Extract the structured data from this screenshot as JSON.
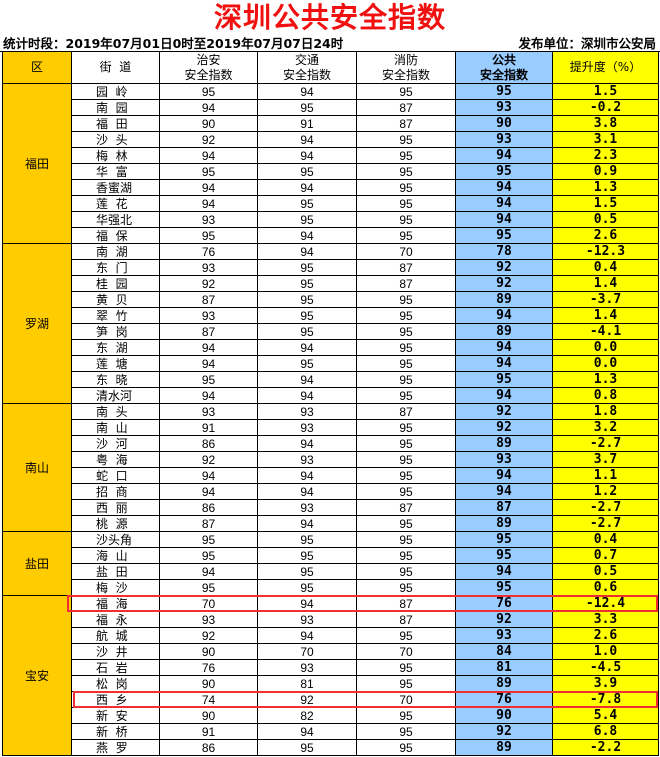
{
  "title": "深圳公共安全指数",
  "period": "统计时段：2019年07月01日0时至2019年07月07日24时",
  "publisher": "发布单位：深圳市公安局",
  "colors": {
    "district_bg": "#ffcc00",
    "public_bg": "#99ccff",
    "improve_bg": "#ffff00",
    "title": "#f01010",
    "highlight": "#f03030"
  },
  "headers": {
    "district": "区",
    "street": "街  道",
    "security": [
      "治安",
      "安全指数"
    ],
    "traffic": [
      "交通",
      "安全指数"
    ],
    "fire": [
      "消防",
      "安全指数"
    ],
    "public": [
      "公共",
      "安全指数"
    ],
    "improve": "提升度（%）"
  },
  "districts": [
    {
      "name": "福田",
      "rows": [
        [
          "园  岭",
          95,
          94,
          95,
          95,
          "1.5"
        ],
        [
          "南  园",
          94,
          95,
          87,
          93,
          "-0.2"
        ],
        [
          "福  田",
          90,
          91,
          87,
          90,
          "3.8"
        ],
        [
          "沙  头",
          92,
          94,
          95,
          93,
          "3.1"
        ],
        [
          "梅  林",
          94,
          94,
          95,
          94,
          "2.3"
        ],
        [
          "华  富",
          95,
          95,
          95,
          95,
          "0.9"
        ],
        [
          "香蜜湖",
          94,
          94,
          95,
          94,
          "1.3"
        ],
        [
          "莲  花",
          94,
          95,
          95,
          94,
          "1.5"
        ],
        [
          "华强北",
          93,
          95,
          95,
          94,
          "0.5"
        ],
        [
          "福  保",
          95,
          94,
          95,
          95,
          "2.6"
        ]
      ]
    },
    {
      "name": "罗湖",
      "rows": [
        [
          "南  湖",
          76,
          94,
          70,
          78,
          "-12.3"
        ],
        [
          "东  门",
          93,
          95,
          87,
          92,
          "0.4"
        ],
        [
          "桂  园",
          92,
          95,
          87,
          92,
          "1.4"
        ],
        [
          "黄  贝",
          87,
          95,
          95,
          89,
          "-3.7"
        ],
        [
          "翠  竹",
          93,
          95,
          95,
          94,
          "1.4"
        ],
        [
          "笋  岗",
          87,
          95,
          95,
          89,
          "-4.1"
        ],
        [
          "东  湖",
          94,
          94,
          95,
          94,
          "0.0"
        ],
        [
          "莲  塘",
          94,
          95,
          95,
          94,
          "0.0"
        ],
        [
          "东  晓",
          95,
          94,
          95,
          95,
          "1.3"
        ],
        [
          "清水河",
          94,
          94,
          95,
          94,
          "0.8"
        ]
      ]
    },
    {
      "name": "南山",
      "rows": [
        [
          "南  头",
          93,
          93,
          87,
          92,
          "1.8"
        ],
        [
          "南  山",
          91,
          93,
          95,
          92,
          "3.2"
        ],
        [
          "沙  河",
          86,
          94,
          95,
          89,
          "-2.7"
        ],
        [
          "粤  海",
          92,
          93,
          95,
          93,
          "3.7"
        ],
        [
          "蛇  口",
          94,
          94,
          95,
          94,
          "1.1"
        ],
        [
          "招  商",
          94,
          94,
          95,
          94,
          "1.2"
        ],
        [
          "西  丽",
          86,
          93,
          87,
          87,
          "-2.7"
        ],
        [
          "桃  源",
          87,
          94,
          95,
          89,
          "-2.7"
        ]
      ]
    },
    {
      "name": "盐田",
      "rows": [
        [
          "沙头角",
          95,
          95,
          95,
          95,
          "0.4"
        ],
        [
          "海  山",
          95,
          95,
          95,
          95,
          "0.7"
        ],
        [
          "盐  田",
          94,
          95,
          95,
          94,
          "0.5"
        ],
        [
          "梅  沙",
          95,
          95,
          95,
          95,
          "0.6"
        ]
      ]
    },
    {
      "name": "宝安",
      "rows": [
        [
          "福  海",
          70,
          94,
          87,
          76,
          "-12.4"
        ],
        [
          "福  永",
          93,
          93,
          87,
          92,
          "3.3"
        ],
        [
          "航  城",
          92,
          94,
          95,
          93,
          "2.6"
        ],
        [
          "沙  井",
          90,
          70,
          70,
          84,
          "1.0"
        ],
        [
          "石  岩",
          76,
          93,
          95,
          81,
          "-4.5"
        ],
        [
          "松  岗",
          90,
          81,
          95,
          89,
          "3.9"
        ],
        [
          "西  乡",
          74,
          92,
          70,
          76,
          "-7.8"
        ],
        [
          "新  安",
          90,
          82,
          95,
          90,
          "5.4"
        ],
        [
          "新  桥",
          91,
          94,
          95,
          92,
          "6.8"
        ],
        [
          "燕  罗",
          86,
          95,
          95,
          89,
          "-2.2"
        ]
      ]
    }
  ],
  "highlighted_streets": [
    "福  海",
    "西  乡"
  ]
}
